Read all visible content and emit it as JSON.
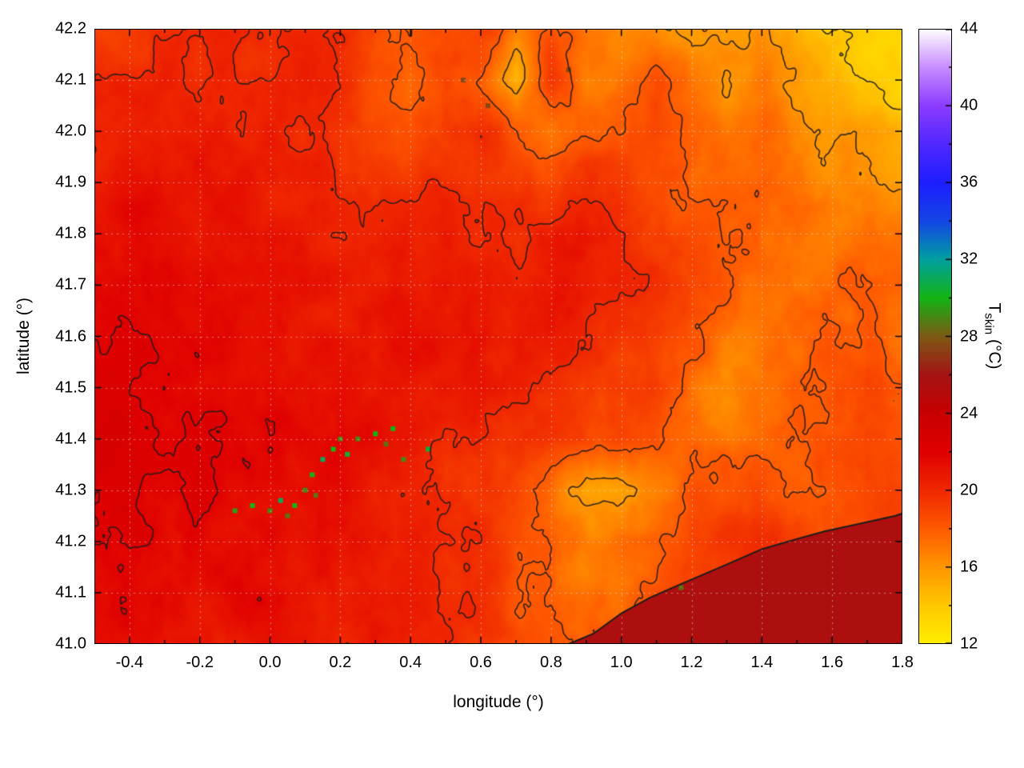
{
  "chart_data": {
    "type": "heatmap",
    "title": "",
    "xlabel": "longitude (°)",
    "ylabel": "latitude (°)",
    "x_range": [
      -0.5,
      1.8
    ],
    "y_range": [
      41.0,
      42.2
    ],
    "x_ticks": [
      -0.4,
      -0.2,
      0.0,
      0.2,
      0.4,
      0.6,
      0.8,
      1.0,
      1.2,
      1.4,
      1.6,
      1.8
    ],
    "x_tick_labels": [
      "-0.4",
      "-0.2",
      "0.0",
      "0.2",
      "0.4",
      "0.6",
      "0.8",
      "1.0",
      "1.2",
      "1.4",
      "1.6",
      "1.8"
    ],
    "x_minor_ticks": [
      -0.3,
      -0.1,
      0.1,
      0.3,
      0.5,
      0.7,
      0.9,
      1.1,
      1.3,
      1.5,
      1.7
    ],
    "y_ticks": [
      41.0,
      41.1,
      41.2,
      41.3,
      41.4,
      41.5,
      41.6,
      41.7,
      41.8,
      41.9,
      42.0,
      42.1,
      42.2
    ],
    "y_tick_labels": [
      "41.0",
      "41.1",
      "41.2",
      "41.3",
      "41.4",
      "41.5",
      "41.6",
      "41.7",
      "41.8",
      "41.9",
      "42.0",
      "42.1",
      "42.2"
    ],
    "grid": true,
    "grid_line_color": "rgba(225,225,225,0.55)",
    "contour_levels": [
      14,
      16,
      18,
      20,
      22,
      24
    ],
    "contour_color": "#1c1c1c",
    "noise_amplitude": 0.8,
    "colorbar": {
      "label_main": "T",
      "label_sub": "skin",
      "label_rest": " (°C)",
      "range": [
        12,
        44
      ],
      "ticks": [
        12,
        16,
        20,
        24,
        28,
        32,
        36,
        40,
        44
      ],
      "tick_labels": [
        "12",
        "16",
        "20",
        "24",
        "28",
        "32",
        "36",
        "40",
        "44"
      ],
      "minor_ticks": [
        14,
        18,
        22,
        26,
        30,
        34,
        38,
        42
      ]
    },
    "palette_stops": [
      [
        12,
        "#ffee00"
      ],
      [
        14,
        "#ffc800"
      ],
      [
        16,
        "#ff9600"
      ],
      [
        18,
        "#ff5a00"
      ],
      [
        20,
        "#f02800"
      ],
      [
        22,
        "#e00000"
      ],
      [
        24,
        "#c80000"
      ],
      [
        26,
        "#a51414"
      ],
      [
        28,
        "#7d5a14"
      ],
      [
        30,
        "#14b414"
      ],
      [
        32,
        "#00a0a0"
      ],
      [
        34,
        "#1446e6"
      ],
      [
        36,
        "#1e1eff"
      ],
      [
        38,
        "#5028ff"
      ],
      [
        40,
        "#8c3cff"
      ],
      [
        42,
        "#c88cff"
      ],
      [
        44,
        "#ffffff"
      ]
    ],
    "field": {
      "lon0": -0.5,
      "dlon": 0.1,
      "nlon": 24,
      "lat0": 42.2,
      "dlat": -0.1,
      "nlat": 13,
      "order": "rows listed north (42.2) to south (41.0), columns west (-0.5) to east (1.8), values in °C",
      "values": [
        [
          19,
          19,
          20,
          20,
          20,
          19.5,
          20,
          20,
          18.5,
          18,
          18.5,
          19,
          17,
          18.5,
          17,
          16.5,
          16,
          15.5,
          16,
          16.5,
          15,
          14,
          13.5,
          13
        ],
        [
          20,
          20,
          20.5,
          20,
          20,
          20,
          20.5,
          20,
          18.5,
          17.5,
          19,
          18,
          15,
          19.5,
          16.5,
          17,
          18.5,
          17,
          16,
          17,
          16,
          15,
          14,
          13.5
        ],
        [
          20,
          20.5,
          20.5,
          20.5,
          20.5,
          20.5,
          20,
          19.5,
          19,
          18,
          19.5,
          20,
          18,
          17,
          18,
          18.5,
          19,
          18,
          17,
          17.5,
          16.5,
          16,
          15.5,
          15
        ],
        [
          20.5,
          21,
          21,
          21,
          21,
          20.5,
          20.5,
          20,
          19.5,
          19.5,
          20,
          19.5,
          19,
          19,
          19.5,
          19,
          18.5,
          18,
          17.5,
          18,
          17,
          16.5,
          16.5,
          16
        ],
        [
          21,
          21.5,
          21.5,
          21,
          21,
          21,
          20.5,
          20.5,
          20,
          20.5,
          20.5,
          20,
          20,
          20.5,
          20.5,
          20,
          19,
          18.5,
          18,
          17.5,
          17.5,
          17,
          17.5,
          17
        ],
        [
          21.5,
          21.5,
          21.5,
          21.5,
          21,
          21,
          21,
          20.5,
          20.5,
          21,
          21,
          20.5,
          20.5,
          21,
          20.5,
          20,
          19.5,
          19,
          18,
          17.5,
          17,
          17.5,
          18,
          17.5
        ],
        [
          22,
          22,
          21.5,
          21.5,
          21.5,
          21,
          21,
          21,
          20.5,
          21,
          21,
          21,
          20.5,
          20.5,
          20,
          19.5,
          19,
          18,
          17,
          17,
          17.5,
          18,
          18,
          17
        ],
        [
          22.5,
          22,
          22,
          21.5,
          21.5,
          21.5,
          21,
          21,
          21,
          21,
          20.5,
          20.5,
          20,
          20,
          19.5,
          19,
          18.5,
          17.5,
          16.5,
          17,
          17.5,
          18,
          18.5,
          18
        ],
        [
          22.5,
          22.5,
          22,
          22,
          21.5,
          21.5,
          21.5,
          22,
          21,
          20.5,
          20,
          20,
          19.5,
          19.5,
          19,
          18.5,
          18.5,
          17.5,
          17,
          17.5,
          18,
          18.5,
          18.5,
          18
        ],
        [
          22.5,
          22.5,
          22,
          22,
          21.5,
          21.5,
          21.5,
          21,
          20.5,
          20,
          19.5,
          19.5,
          18.5,
          17,
          15,
          15.5,
          16.5,
          18,
          18.5,
          19,
          17.5,
          18,
          18.5,
          18.5
        ],
        [
          22,
          22,
          21.5,
          21.5,
          21.5,
          21.5,
          21,
          21,
          20.5,
          20.5,
          20,
          19.5,
          18.5,
          17.5,
          17,
          17.5,
          18,
          19,
          19.5,
          19.5,
          19,
          18.5,
          18.5,
          18.5
        ],
        [
          21.5,
          21.5,
          21.5,
          21,
          21.5,
          21.5,
          21,
          20.5,
          20.5,
          20.5,
          20,
          19.5,
          18.5,
          17.5,
          17,
          17.5,
          18.5,
          19,
          19,
          19,
          19,
          19,
          19,
          19
        ],
        [
          21.5,
          21.5,
          21,
          21,
          21,
          21,
          21,
          20.5,
          20.5,
          20,
          20,
          19.5,
          18.5,
          18,
          17.5,
          18,
          18.5,
          19,
          19,
          19,
          19,
          19,
          19,
          19
        ]
      ]
    },
    "sea": {
      "value": 25.5,
      "coast": [
        [
          0.85,
          41.0
        ],
        [
          0.92,
          41.02
        ],
        [
          1.0,
          41.06
        ],
        [
          1.08,
          41.09
        ],
        [
          1.18,
          41.12
        ],
        [
          1.3,
          41.155
        ],
        [
          1.4,
          41.185
        ],
        [
          1.5,
          41.205
        ],
        [
          1.58,
          41.22
        ],
        [
          1.68,
          41.235
        ],
        [
          1.78,
          41.25
        ],
        [
          1.8,
          41.255
        ]
      ]
    },
    "speckles": [
      {
        "lon": -0.1,
        "lat": 41.26,
        "v": 29.5
      },
      {
        "lon": -0.05,
        "lat": 41.27,
        "v": 30
      },
      {
        "lon": 0.0,
        "lat": 41.26,
        "v": 29
      },
      {
        "lon": 0.03,
        "lat": 41.28,
        "v": 31
      },
      {
        "lon": 0.07,
        "lat": 41.27,
        "v": 30
      },
      {
        "lon": 0.05,
        "lat": 41.25,
        "v": 28.5
      },
      {
        "lon": 0.1,
        "lat": 41.3,
        "v": 29
      },
      {
        "lon": 0.12,
        "lat": 41.33,
        "v": 30
      },
      {
        "lon": 0.13,
        "lat": 41.29,
        "v": 28.5
      },
      {
        "lon": 0.15,
        "lat": 41.36,
        "v": 31
      },
      {
        "lon": 0.18,
        "lat": 41.38,
        "v": 30
      },
      {
        "lon": 0.2,
        "lat": 41.4,
        "v": 29
      },
      {
        "lon": 0.22,
        "lat": 41.37,
        "v": 30.5
      },
      {
        "lon": 0.25,
        "lat": 41.4,
        "v": 29
      },
      {
        "lon": 0.3,
        "lat": 41.41,
        "v": 30
      },
      {
        "lon": 0.33,
        "lat": 41.39,
        "v": 28.5
      },
      {
        "lon": 0.35,
        "lat": 41.42,
        "v": 30
      },
      {
        "lon": 0.38,
        "lat": 41.36,
        "v": 29
      },
      {
        "lon": 0.45,
        "lat": 41.38,
        "v": 30.5
      },
      {
        "lon": 0.55,
        "lat": 42.1,
        "v": 27.5
      },
      {
        "lon": 0.62,
        "lat": 42.05,
        "v": 27.5
      },
      {
        "lon": 0.85,
        "lat": 42.12,
        "v": 27.5
      },
      {
        "lon": 1.17,
        "lat": 41.11,
        "v": 28.5
      }
    ]
  }
}
